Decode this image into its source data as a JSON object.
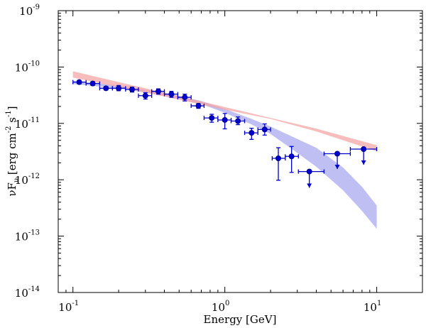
{
  "chart_data": {
    "type": "scatter",
    "title": "",
    "xlabel": "Energy [GeV]",
    "ylabel": "νF_ν [erg cm^-2 s^-1]",
    "xscale": "log",
    "yscale": "log",
    "xlim": [
      0.08,
      20
    ],
    "ylim": [
      1e-14,
      1e-09
    ],
    "x_ticks": [
      {
        "value": 0.1,
        "base": "10",
        "exp": "-1"
      },
      {
        "value": 1,
        "base": "10",
        "exp": "0"
      },
      {
        "value": 10,
        "base": "10",
        "exp": "1"
      }
    ],
    "y_ticks": [
      {
        "value": 1e-14,
        "base": "10",
        "exp": "-14"
      },
      {
        "value": 1e-13,
        "base": "10",
        "exp": "-13"
      },
      {
        "value": 1e-12,
        "base": "10",
        "exp": "-12"
      },
      {
        "value": 1e-11,
        "base": "10",
        "exp": "-11"
      },
      {
        "value": 1e-10,
        "base": "10",
        "exp": "-10"
      },
      {
        "value": 1e-09,
        "base": "10",
        "exp": "-9"
      }
    ],
    "ylabel_parts": {
      "nu": "ν",
      "F": "F",
      "sub": "ν",
      "open": " [erg cm",
      "exp1": "-2",
      "mid": " s",
      "exp2": "-1",
      "close": "]"
    },
    "colors": {
      "points": "#0000cc",
      "point_edge": "#000080",
      "powerlaw_band": "#f4a6a6",
      "curved_band": "#a9a9f0"
    },
    "series": [
      {
        "name": "data points",
        "points": [
          {
            "x": 0.11,
            "x_lo": 0.1,
            "x_hi": 0.122,
            "y": 5.4e-11,
            "y_lo": 5e-11,
            "y_hi": 5.8e-11,
            "upper_limit": false
          },
          {
            "x": 0.135,
            "x_lo": 0.122,
            "x_hi": 0.15,
            "y": 5.1e-11,
            "y_lo": 4.7e-11,
            "y_hi": 5.5e-11,
            "upper_limit": false
          },
          {
            "x": 0.165,
            "x_lo": 0.15,
            "x_hi": 0.182,
            "y": 4.2e-11,
            "y_lo": 3.9e-11,
            "y_hi": 4.5e-11,
            "upper_limit": false
          },
          {
            "x": 0.2,
            "x_lo": 0.182,
            "x_hi": 0.222,
            "y": 4.2e-11,
            "y_lo": 3.8e-11,
            "y_hi": 4.7e-11,
            "upper_limit": false
          },
          {
            "x": 0.245,
            "x_lo": 0.222,
            "x_hi": 0.27,
            "y": 4e-11,
            "y_lo": 3.6e-11,
            "y_hi": 4.4e-11,
            "upper_limit": false
          },
          {
            "x": 0.3,
            "x_lo": 0.27,
            "x_hi": 0.33,
            "y": 3.1e-11,
            "y_lo": 2.7e-11,
            "y_hi": 3.5e-11,
            "upper_limit": false
          },
          {
            "x": 0.365,
            "x_lo": 0.33,
            "x_hi": 0.4,
            "y": 3.7e-11,
            "y_lo": 3.3e-11,
            "y_hi": 4.1e-11,
            "upper_limit": false
          },
          {
            "x": 0.445,
            "x_lo": 0.4,
            "x_hi": 0.49,
            "y": 3.3e-11,
            "y_lo": 2.9e-11,
            "y_hi": 3.7e-11,
            "upper_limit": false
          },
          {
            "x": 0.545,
            "x_lo": 0.49,
            "x_hi": 0.6,
            "y": 2.9e-11,
            "y_lo": 2.5e-11,
            "y_hi": 3.3e-11,
            "upper_limit": false
          },
          {
            "x": 0.67,
            "x_lo": 0.6,
            "x_hi": 0.73,
            "y": 2.05e-11,
            "y_lo": 1.85e-11,
            "y_hi": 2.25e-11,
            "upper_limit": false
          },
          {
            "x": 0.82,
            "x_lo": 0.73,
            "x_hi": 0.9,
            "y": 1.25e-11,
            "y_lo": 1.05e-11,
            "y_hi": 1.45e-11,
            "upper_limit": false
          },
          {
            "x": 1.0,
            "x_lo": 0.9,
            "x_hi": 1.1,
            "y": 1.15e-11,
            "y_lo": 8e-12,
            "y_hi": 1.5e-11,
            "upper_limit": false
          },
          {
            "x": 1.22,
            "x_lo": 1.1,
            "x_hi": 1.35,
            "y": 1.1e-11,
            "y_lo": 9.5e-12,
            "y_hi": 1.3e-11,
            "upper_limit": false
          },
          {
            "x": 1.5,
            "x_lo": 1.35,
            "x_hi": 1.65,
            "y": 6.8e-12,
            "y_lo": 5.2e-12,
            "y_hi": 8.2e-12,
            "upper_limit": false
          },
          {
            "x": 1.83,
            "x_lo": 1.65,
            "x_hi": 2.0,
            "y": 7.8e-12,
            "y_lo": 6.2e-12,
            "y_hi": 9.8e-12,
            "upper_limit": false
          },
          {
            "x": 2.25,
            "x_lo": 2.05,
            "x_hi": 2.5,
            "y": 2.4e-12,
            "y_lo": 9.8e-13,
            "y_hi": 3.7e-12,
            "upper_limit": false
          },
          {
            "x": 2.75,
            "x_lo": 2.5,
            "x_hi": 3.05,
            "y": 2.6e-12,
            "y_lo": 1.35e-12,
            "y_hi": 3.9e-12,
            "upper_limit": false
          },
          {
            "x": 3.6,
            "x_lo": 3.05,
            "x_hi": 4.5,
            "y": 1.4e-12,
            "y_lo": 7.2e-13,
            "y_hi": 1.4e-12,
            "upper_limit": true
          },
          {
            "x": 5.5,
            "x_lo": 4.5,
            "x_hi": 6.7,
            "y": 2.9e-12,
            "y_lo": 1.55e-12,
            "y_hi": 2.9e-12,
            "upper_limit": true
          },
          {
            "x": 8.2,
            "x_lo": 6.7,
            "x_hi": 10.0,
            "y": 3.5e-12,
            "y_lo": 1.85e-12,
            "y_hi": 3.5e-12,
            "upper_limit": true
          }
        ]
      },
      {
        "name": "power-law fit band",
        "x": [
          0.1,
          0.2,
          0.4,
          1.0,
          2.0,
          4.0,
          10.0
        ],
        "y_lower": [
          6.5e-11,
          4.4e-11,
          3e-11,
          1.75e-11,
          1.2e-11,
          7.2e-12,
          3.2e-12
        ],
        "y_upper": [
          8.4e-11,
          5.4e-11,
          3.5e-11,
          1.95e-11,
          1.25e-11,
          8.1e-12,
          4.1e-12
        ]
      },
      {
        "name": "curved fit band",
        "x": [
          0.1,
          0.2,
          0.4,
          0.7,
          1.0,
          1.5,
          2.0,
          3.0,
          4.0,
          6.0,
          8.0,
          10.0
        ],
        "y_lower": [
          5e-11,
          4.2e-11,
          3.1e-11,
          2.2e-11,
          1.55e-11,
          9.6e-12,
          6.5e-12,
          3e-12,
          1.7e-12,
          6.5e-13,
          2.8e-13,
          1.35e-13
        ],
        "y_upper": [
          5.7e-11,
          4.7e-11,
          3.5e-11,
          2.5e-11,
          1.8e-11,
          1.2e-11,
          8.8e-12,
          5.3e-12,
          3.7e-12,
          1.65e-12,
          7.5e-13,
          3.5e-13
        ]
      }
    ]
  }
}
